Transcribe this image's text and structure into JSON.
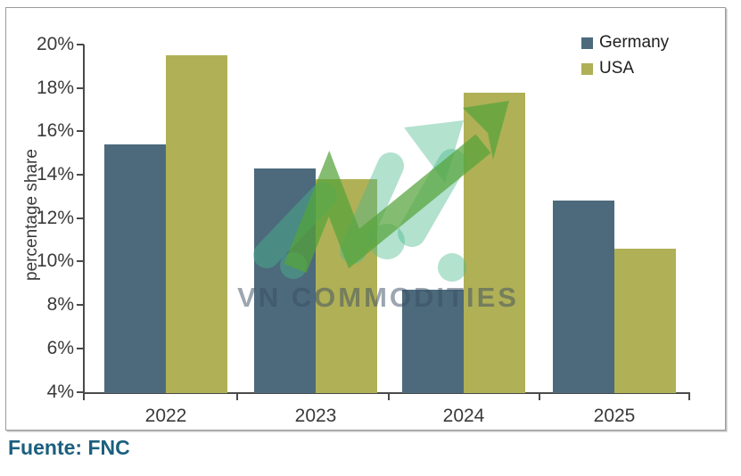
{
  "chart_data": {
    "type": "bar",
    "title": "",
    "categories": [
      "2022",
      "2023",
      "2024",
      "2025"
    ],
    "series": [
      {
        "name": "Germany",
        "color": "#4c6a7c",
        "values": [
          15.4,
          14.3,
          8.7,
          12.8
        ]
      },
      {
        "name": "USA",
        "color": "#b0b057",
        "values": [
          19.5,
          13.8,
          17.8,
          10.6
        ]
      }
    ],
    "xlabel": "",
    "ylabel": "percentage share",
    "ylim": [
      4,
      20
    ],
    "ytick_step": 2,
    "ytick_labels": [
      "20%",
      "18%",
      "16%",
      "14%",
      "12%",
      "10%",
      "8%",
      "6%",
      "4%"
    ],
    "grid": false,
    "legend_position": "top-right"
  },
  "watermark": {
    "text": "VN COMMODITIES",
    "text_color": "#3a4c62",
    "mint": "#49b98d",
    "green": "#55a33a"
  },
  "source": {
    "label": "Fuente: FNC"
  },
  "colors": {
    "axis": "#4a4a4a",
    "tick_text": "#3a3a3a",
    "panel_border": "#9b9b9b",
    "source_text": "#1b5f7e",
    "background": "#ffffff"
  }
}
